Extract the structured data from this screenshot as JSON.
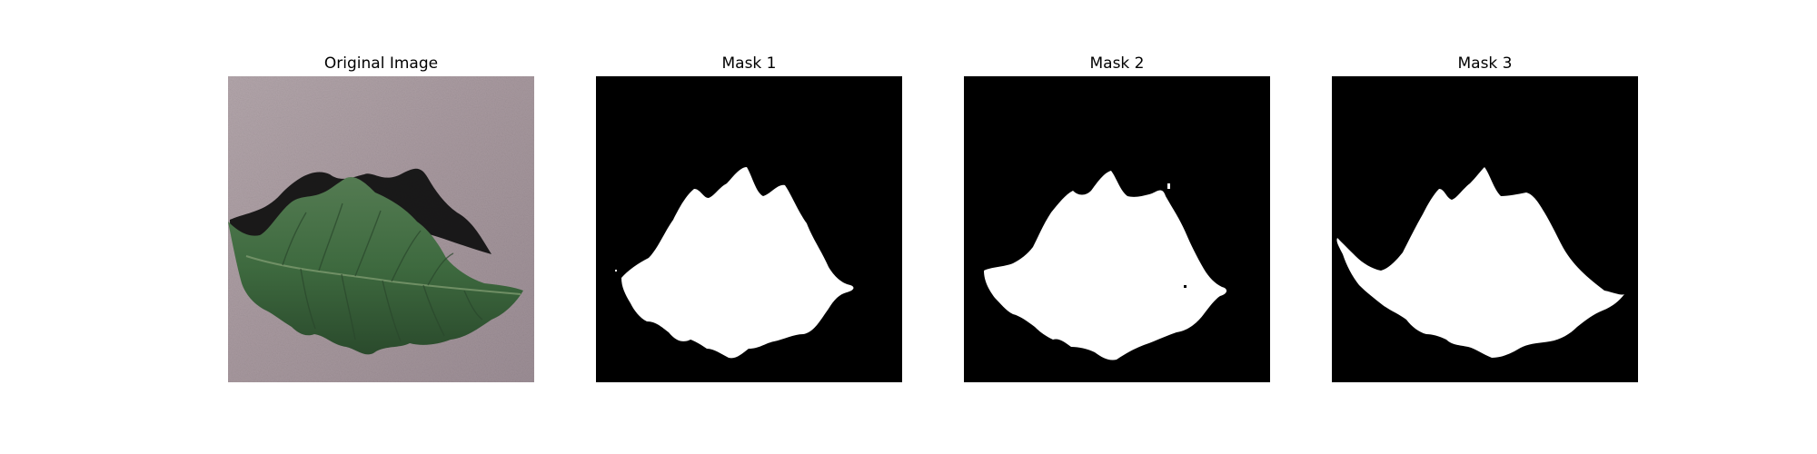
{
  "figure": {
    "panels": [
      {
        "title": "Original Image"
      },
      {
        "title": "Mask 1"
      },
      {
        "title": "Mask 2"
      },
      {
        "title": "Mask 3"
      }
    ]
  },
  "colors": {
    "background": "#ffffff",
    "mask_background": "#000000",
    "mask_foreground": "#ffffff",
    "surface_gray": "#a8999f",
    "leaf_green": "#3f6b40",
    "leaf_dark_green": "#243f27",
    "shadow": "#141414"
  }
}
